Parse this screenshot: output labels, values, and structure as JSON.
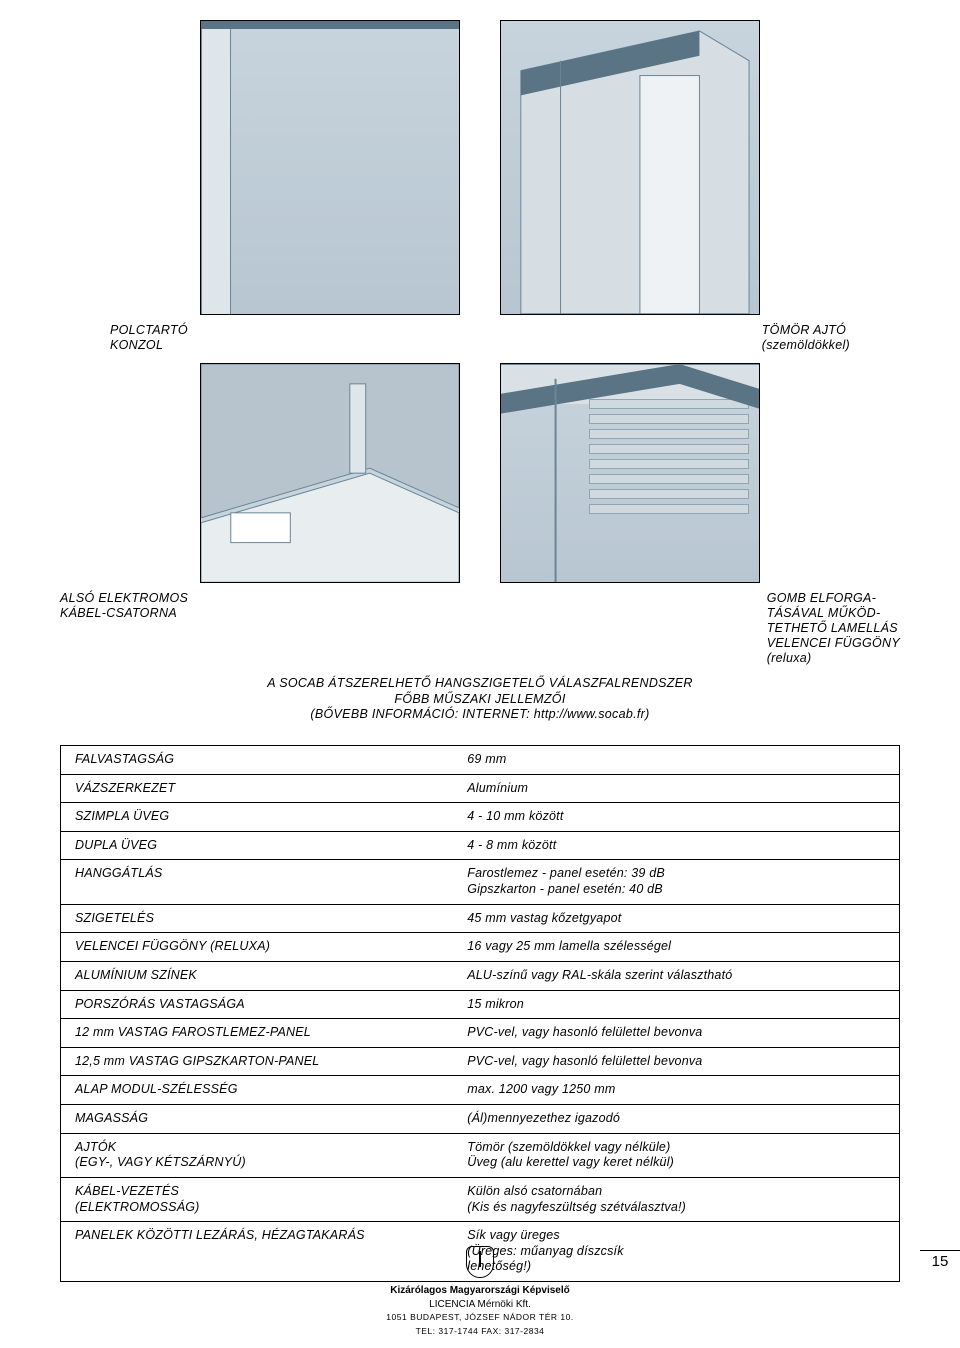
{
  "figures": {
    "top_left_caption_l1": "POLCTARTÓ",
    "top_left_caption_l2": "KONZOL",
    "top_right_caption_l1": "TÖMÖR AJTÓ",
    "top_right_caption_l2": "(szemöldökkel)",
    "bottom_left_caption_l1": "ALSÓ ELEKTROMOS",
    "bottom_left_caption_l2": "KÁBEL-CSATORNA",
    "bottom_right_caption_l1": "GOMB ELFORGA-",
    "bottom_right_caption_l2": "TÁSÁVAL MŰKÖD-",
    "bottom_right_caption_l3": "TETHETŐ LAMELLÁS",
    "bottom_right_caption_l4": "VELENCEI FÜGGÖNY",
    "bottom_right_caption_l5": "(reluxa)"
  },
  "title": {
    "l1": "A SOCAB ÁTSZERELHETŐ HANGSZIGETELŐ VÁLASZFALRENDSZER",
    "l2": "FŐBB MŰSZAKI JELLEMZŐI",
    "l3": "(BŐVEBB INFORMÁCIÓ: INTERNET: http://www.socab.fr)"
  },
  "specs": [
    {
      "label": "FALVASTAGSÁG",
      "value": "69 mm"
    },
    {
      "label": "VÁZSZERKEZET",
      "value": "Alumínium"
    },
    {
      "label": "SZIMPLA ÜVEG",
      "value": "4 - 10 mm között"
    },
    {
      "label": "DUPLA ÜVEG",
      "value": "4 - 8 mm között"
    },
    {
      "label": "HANGGÁTLÁS",
      "value": "Farostlemez - panel esetén:  39 dB\nGipszkarton - panel esetén: 40 dB"
    },
    {
      "label": "SZIGETELÉS",
      "value": "45 mm vastag kőzetgyapot"
    },
    {
      "label": "VELENCEI FÜGGÖNY (RELUXA)",
      "value": "16 vagy 25 mm lamella szélességel"
    },
    {
      "label": "ALUMÍNIUM SZÍNEK",
      "value": "ALU-színű vagy RAL-skála szerint választható"
    },
    {
      "label": "PORSZÓRÁS VASTAGSÁGA",
      "value": "15 mikron"
    },
    {
      "label": "12 mm VASTAG FAROSTLEMEZ-PANEL",
      "value": "PVC-vel, vagy hasonló felülettel bevonva"
    },
    {
      "label": "12,5 mm VASTAG GIPSZKARTON-PANEL",
      "value": "PVC-vel, vagy hasonló felülettel bevonva"
    },
    {
      "label": "ALAP MODUL-SZÉLESSÉG",
      "value": "max. 1200 vagy 1250 mm"
    },
    {
      "label": "MAGASSÁG",
      "value": "(Ál)mennyezethez igazodó"
    },
    {
      "label": "AJTÓK\n(EGY-, VAGY KÉTSZÁRNYÚ)",
      "value": "Tömör (szemöldökkel vagy nélküle)\nÜveg (alu kerettel vagy keret nélkül)"
    },
    {
      "label": "KÁBEL-VEZETÉS\n(ELEKTROMOSSÁG)",
      "value": "Külön alsó csatornában\n(Kis és nagyfeszültség szétválasztva!)"
    },
    {
      "label": "PANELEK KÖZÖTTI LEZÁRÁS, HÉZAGTAKARÁS",
      "value": "Sík vagy üreges\n(Üreges: műanyag díszcsík\nlehetőség!)"
    }
  ],
  "page_number": "15",
  "footer": {
    "l1": "Kizárólagos Magyarországi Képviselő",
    "l2": "LICENCIA Mérnöki Kft.",
    "l3": "1051 BUDAPEST, JÓZSEF NÁDOR TÉR 10.",
    "l4": "TEL: 317-1744 FAX: 317-2834"
  },
  "colors": {
    "fig_bg_top": "#c7d4dd",
    "fig_bg_bottom": "#b8c6d1",
    "line": "#6a8596",
    "text": "#000000"
  }
}
